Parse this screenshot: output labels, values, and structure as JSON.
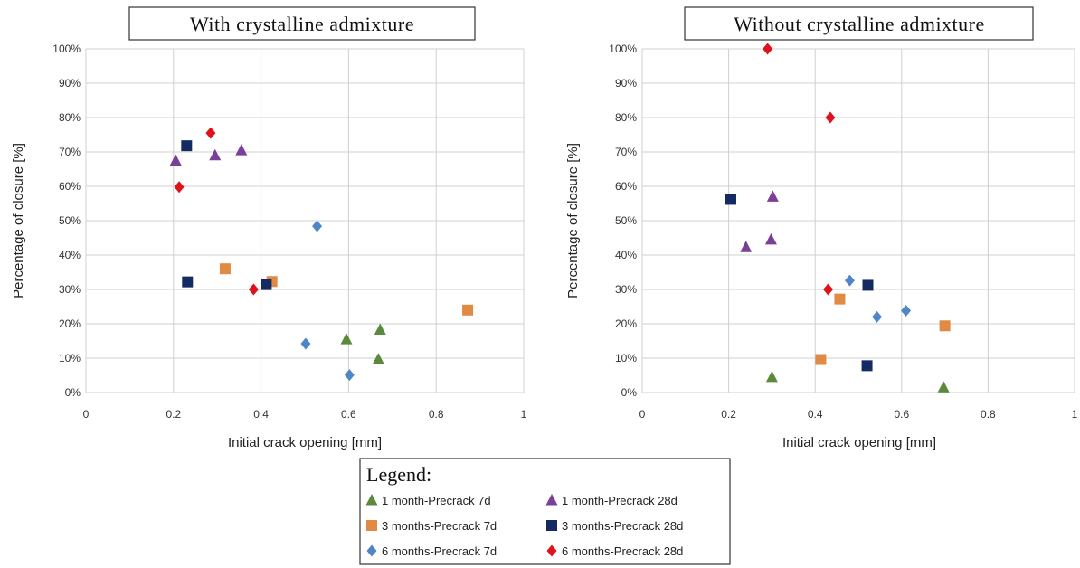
{
  "legend": {
    "title": "Legend:",
    "entries": [
      {
        "label": "1 month-Precrack 7d",
        "marker": "triangle",
        "color": "#5b8a3c"
      },
      {
        "label": "1 month-Precrack 28d",
        "marker": "triangle",
        "color": "#7a3f98"
      },
      {
        "label": "3 months-Precrack 7d",
        "marker": "square",
        "color": "#e08a44"
      },
      {
        "label": "3 months-Precrack 28d",
        "marker": "square",
        "color": "#132a63"
      },
      {
        "label": "6 months-Precrack 7d",
        "marker": "diamond",
        "color": "#4f86c6"
      },
      {
        "label": "6 months-Precrack 28d",
        "marker": "diamond",
        "color": "#e0111a"
      }
    ]
  },
  "chart_data": [
    {
      "type": "scatter",
      "title": "With crystalline admixture",
      "xlabel": "Initial crack opening [mm]",
      "ylabel": "Percentage of closure [%]",
      "xlim": [
        0,
        1
      ],
      "ylim": [
        0,
        100
      ],
      "x_ticks": [
        "0",
        "0.2",
        "0.4",
        "0.6",
        "0.8",
        "1"
      ],
      "y_ticks": [
        "0%",
        "10%",
        "20%",
        "30%",
        "40%",
        "50%",
        "60%",
        "70%",
        "80%",
        "90%",
        "100%"
      ],
      "grid": true,
      "series": [
        {
          "name": "1 month-Precrack 7d",
          "points": [
            [
              0.595,
              15.5
            ],
            [
              0.672,
              18.3
            ],
            [
              0.668,
              9.7
            ]
          ]
        },
        {
          "name": "1 month-Precrack 28d",
          "points": [
            [
              0.205,
              67.5
            ],
            [
              0.295,
              69.0
            ],
            [
              0.355,
              70.5
            ]
          ]
        },
        {
          "name": "3 months-Precrack 7d",
          "points": [
            [
              0.318,
              36.0
            ],
            [
              0.425,
              32.3
            ],
            [
              0.872,
              24.0
            ]
          ]
        },
        {
          "name": "3 months-Precrack 28d",
          "points": [
            [
              0.23,
              71.8
            ],
            [
              0.232,
              32.2
            ],
            [
              0.412,
              31.4
            ]
          ]
        },
        {
          "name": "6 months-Precrack 7d",
          "points": [
            [
              0.528,
              48.4
            ],
            [
              0.502,
              14.2
            ],
            [
              0.602,
              5.1
            ]
          ]
        },
        {
          "name": "6 months-Precrack 28d",
          "points": [
            [
              0.285,
              75.5
            ],
            [
              0.213,
              59.8
            ],
            [
              0.383,
              30.0
            ]
          ]
        }
      ]
    },
    {
      "type": "scatter",
      "title": "Without crystalline admixture",
      "xlabel": "Initial crack opening [mm]",
      "ylabel": "Percentage of closure [%]",
      "xlim": [
        0,
        1
      ],
      "ylim": [
        0,
        100
      ],
      "x_ticks": [
        "0",
        "0.2",
        "0.4",
        "0.6",
        "0.8",
        "1"
      ],
      "y_ticks": [
        "0%",
        "10%",
        "20%",
        "30%",
        "40%",
        "50%",
        "60%",
        "70%",
        "80%",
        "90%",
        "100%"
      ],
      "grid": true,
      "series": [
        {
          "name": "1 month-Precrack 7d",
          "points": [
            [
              0.3,
              4.5
            ],
            [
              0.697,
              1.5
            ]
          ]
        },
        {
          "name": "1 month-Precrack 28d",
          "points": [
            [
              0.302,
              57.0
            ],
            [
              0.24,
              42.3
            ],
            [
              0.298,
              44.5
            ]
          ]
        },
        {
          "name": "3 months-Precrack 7d",
          "points": [
            [
              0.457,
              27.2
            ],
            [
              0.413,
              9.6
            ],
            [
              0.7,
              19.4
            ]
          ]
        },
        {
          "name": "3 months-Precrack 28d",
          "points": [
            [
              0.205,
              56.2
            ],
            [
              0.522,
              31.2
            ],
            [
              0.52,
              7.8
            ]
          ]
        },
        {
          "name": "6 months-Precrack 7d",
          "points": [
            [
              0.48,
              32.6
            ],
            [
              0.543,
              22.0
            ],
            [
              0.61,
              23.8
            ]
          ]
        },
        {
          "name": "6 months-Precrack 28d",
          "points": [
            [
              0.29,
              100.0
            ],
            [
              0.435,
              80.0
            ],
            [
              0.43,
              30.0
            ]
          ]
        }
      ]
    }
  ]
}
